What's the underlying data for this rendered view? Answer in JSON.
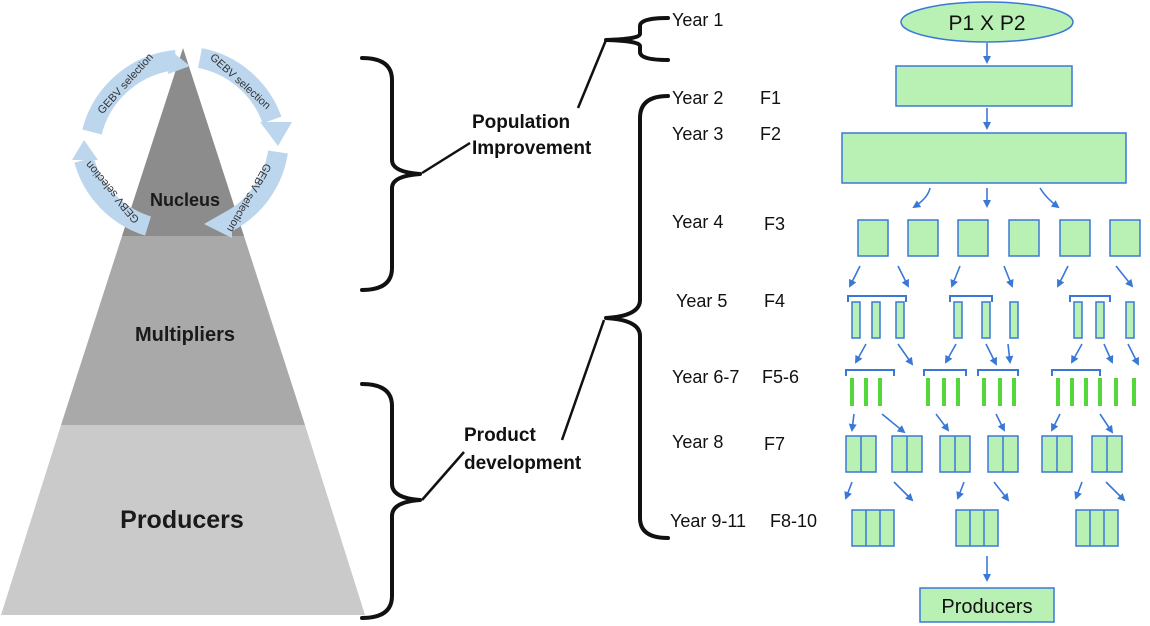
{
  "pyramid": {
    "nucleus": "Nucleus",
    "multipliers": "Multipliers",
    "producers": "Producers",
    "cycle_label": "GEBV selection"
  },
  "groups": {
    "population_improvement": [
      "Population",
      "Improvement"
    ],
    "product_development": [
      "Product",
      "development"
    ]
  },
  "timeline": [
    {
      "year": "Year 1",
      "gen": ""
    },
    {
      "year": "Year 2",
      "gen": "F1"
    },
    {
      "year": "Year 3",
      "gen": "F2"
    },
    {
      "year": "Year 4",
      "gen": "F3"
    },
    {
      "year": "Year 5",
      "gen": "F4"
    },
    {
      "year": "Year 6-7",
      "gen": "F5-6"
    },
    {
      "year": "Year 8",
      "gen": "F7"
    },
    {
      "year": "Year 9-11",
      "gen": "F8-10"
    }
  ],
  "flow": {
    "cross": "P1 X P2",
    "output": "Producers"
  },
  "colors": {
    "pyramid_top": "#8c8c8c",
    "pyramid_mid": "#a9a9a9",
    "pyramid_bottom": "#cacaca",
    "cycle_arrow": "#bcd6ee",
    "box_fill": "#b9f0b4",
    "box_stroke": "#3a78d8",
    "green_line": "#55d63a"
  }
}
